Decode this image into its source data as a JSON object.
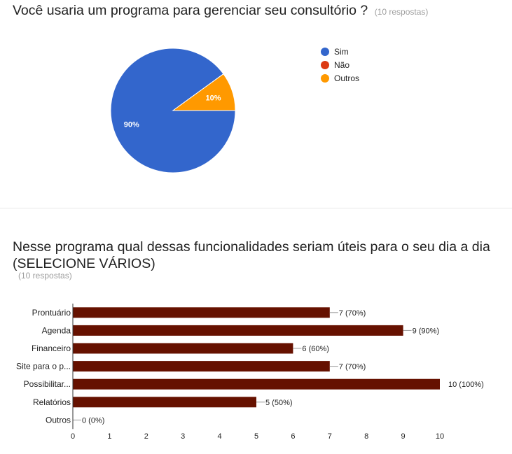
{
  "question1": {
    "title": "Você usaria um programa para gerenciar seu consultório ?",
    "responses": "(10 respostas)"
  },
  "question2": {
    "title": "Nesse programa qual dessas funcionalidades seriam úteis para o seu dia a dia (SELECIONE VÁRIOS)",
    "responses": "(10 respostas)"
  },
  "chart_data": [
    {
      "type": "pie",
      "title": "Você usaria um programa para gerenciar seu consultório ?",
      "legend_position": "right",
      "slices": [
        {
          "label": "Sim",
          "value": 90,
          "display": "90%",
          "color": "#3366cc"
        },
        {
          "label": "Não",
          "value": 0,
          "display": "",
          "color": "#dc3912"
        },
        {
          "label": "Outros",
          "value": 10,
          "display": "10%",
          "color": "#ff9900"
        }
      ]
    },
    {
      "type": "bar",
      "orientation": "horizontal",
      "title": "Nesse programa qual dessas funcionalidades seriam úteis para o seu dia a dia (SELECIONE VÁRIOS)",
      "categories": [
        "Prontuário",
        "Agenda",
        "Financeiro",
        "Site para o p...",
        "Possibilitar...",
        "Relatórios",
        "Outros"
      ],
      "values": [
        7,
        9,
        6,
        7,
        10,
        5,
        0
      ],
      "data_labels": [
        "7 (70%)",
        "9 (90%)",
        "6 (60%)",
        "7 (70%)",
        "10 (100%)",
        "5 (50%)",
        "0 (0%)"
      ],
      "xlim": [
        0,
        10
      ],
      "xticks": [
        "0",
        "1",
        "2",
        "3",
        "4",
        "5",
        "6",
        "7",
        "8",
        "9",
        "10"
      ],
      "bar_color": "#661100",
      "grid": false
    }
  ]
}
